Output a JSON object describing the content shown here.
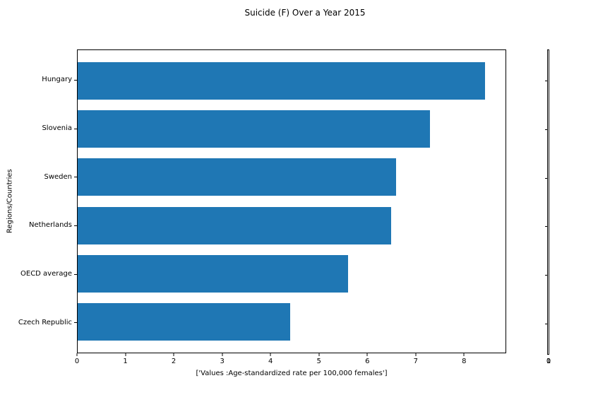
{
  "figure": {
    "title": "Suicide (F) Over a Year 2015"
  },
  "chart_data": {
    "type": "bar",
    "orientation": "horizontal",
    "title": "Suicide (F) Over a Year 2015",
    "categories": [
      "Hungary",
      "Slovenia",
      "Sweden",
      "Netherlands",
      "OECD average",
      "Czech Republic"
    ],
    "values": [
      8.45,
      7.3,
      6.6,
      6.5,
      5.6,
      4.4
    ],
    "xlabel": "['Values :Age-standardized rate per 100,000 females']",
    "ylabel": "Regions/Countries",
    "xlim": [
      0,
      8.87
    ],
    "xticks": [
      0,
      1,
      2,
      3,
      4,
      5,
      6,
      7,
      8
    ],
    "grid": false,
    "legend_position": "none",
    "bar_color": "#1f77b4",
    "axis_color": "#000000",
    "background": "#ffffff"
  },
  "secondary_axis": {
    "note": "degenerate zero-width twin axis at right edge of figure",
    "xtick_labels": [
      "0",
      "1"
    ],
    "ytick_count": 6
  }
}
